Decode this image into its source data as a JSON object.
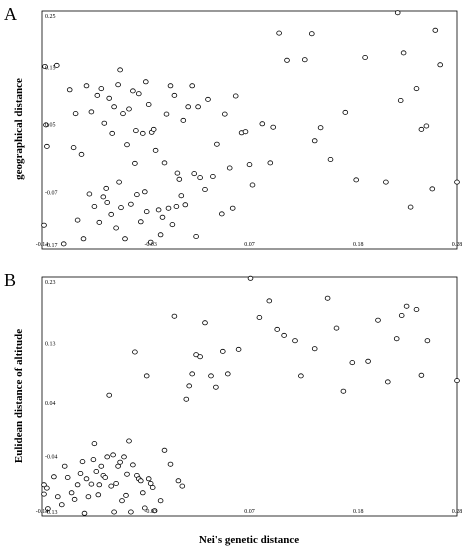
{
  "chart_data": [
    {
      "type": "scatter",
      "panel_letter": "A",
      "xlabel": "",
      "ylabel": "geographical distance",
      "xlim": [
        -0.14,
        0.28
      ],
      "ylim": [
        -0.17,
        0.25
      ],
      "xticks": [
        "-0.14",
        "-0.03",
        "0.07",
        "0.18",
        "0.28"
      ],
      "yticks": [
        "0.25",
        "0.15",
        "0.05",
        "-0.07",
        "-0.17"
      ],
      "grid": false,
      "points": [
        [
          -0.137,
          0.152
        ],
        [
          -0.136,
          0.049
        ],
        [
          -0.135,
          0.011
        ],
        [
          -0.138,
          -0.128
        ],
        [
          -0.125,
          0.154
        ],
        [
          -0.118,
          -0.161
        ],
        [
          -0.112,
          0.111
        ],
        [
          -0.108,
          0.009
        ],
        [
          -0.106,
          0.069
        ],
        [
          -0.104,
          -0.119
        ],
        [
          -0.1,
          -0.003
        ],
        [
          -0.098,
          -0.152
        ],
        [
          -0.095,
          0.118
        ],
        [
          -0.092,
          -0.073
        ],
        [
          -0.09,
          0.072
        ],
        [
          -0.087,
          -0.095
        ],
        [
          -0.084,
          0.101
        ],
        [
          -0.082,
          -0.123
        ],
        [
          -0.08,
          0.113
        ],
        [
          -0.078,
          -0.078
        ],
        [
          -0.077,
          0.052
        ],
        [
          -0.075,
          -0.063
        ],
        [
          -0.074,
          -0.088
        ],
        [
          -0.072,
          0.096
        ],
        [
          -0.07,
          -0.109
        ],
        [
          -0.069,
          0.034
        ],
        [
          -0.067,
          0.081
        ],
        [
          -0.065,
          -0.133
        ],
        [
          -0.063,
          0.12
        ],
        [
          -0.062,
          -0.052
        ],
        [
          -0.061,
          0.146
        ],
        [
          -0.06,
          -0.097
        ],
        [
          -0.058,
          0.069
        ],
        [
          -0.056,
          -0.152
        ],
        [
          -0.054,
          0.014
        ],
        [
          -0.052,
          0.077
        ],
        [
          -0.05,
          -0.091
        ],
        [
          -0.048,
          0.109
        ],
        [
          -0.046,
          -0.019
        ],
        [
          -0.045,
          0.039
        ],
        [
          -0.044,
          -0.074
        ],
        [
          -0.042,
          0.104
        ],
        [
          -0.04,
          -0.122
        ],
        [
          -0.038,
          0.034
        ],
        [
          -0.036,
          -0.069
        ],
        [
          -0.035,
          0.125
        ],
        [
          -0.034,
          -0.104
        ],
        [
          -0.032,
          0.085
        ],
        [
          -0.03,
          -0.158
        ],
        [
          -0.029,
          0.036
        ],
        [
          -0.027,
          0.041
        ],
        [
          -0.025,
          0.004
        ],
        [
          -0.022,
          -0.101
        ],
        [
          -0.02,
          -0.145
        ],
        [
          -0.018,
          -0.114
        ],
        [
          -0.016,
          -0.018
        ],
        [
          -0.014,
          0.068
        ],
        [
          -0.012,
          -0.098
        ],
        [
          -0.01,
          0.118
        ],
        [
          -0.008,
          -0.127
        ],
        [
          -0.006,
          0.101
        ],
        [
          -0.004,
          -0.095
        ],
        [
          -0.003,
          -0.036
        ],
        [
          -0.001,
          -0.047
        ],
        [
          0.001,
          -0.076
        ],
        [
          0.003,
          0.057
        ],
        [
          0.005,
          -0.092
        ],
        [
          0.008,
          0.081
        ],
        [
          0.012,
          0.118
        ],
        [
          0.014,
          -0.037
        ],
        [
          0.016,
          -0.148
        ],
        [
          0.018,
          0.081
        ],
        [
          0.02,
          -0.044
        ],
        [
          0.025,
          -0.065
        ],
        [
          0.028,
          0.094
        ],
        [
          0.033,
          -0.042
        ],
        [
          0.037,
          0.015
        ],
        [
          0.042,
          -0.108
        ],
        [
          0.045,
          0.068
        ],
        [
          0.05,
          -0.027
        ],
        [
          0.053,
          -0.098
        ],
        [
          0.056,
          0.1
        ],
        [
          0.062,
          0.035
        ],
        [
          0.066,
          0.037
        ],
        [
          0.07,
          -0.021
        ],
        [
          0.073,
          -0.057
        ],
        [
          0.083,
          0.051
        ],
        [
          0.091,
          -0.018
        ],
        [
          0.094,
          0.045
        ],
        [
          0.1,
          0.211
        ],
        [
          0.108,
          0.163
        ],
        [
          0.126,
          0.164
        ],
        [
          0.133,
          0.21
        ],
        [
          0.136,
          0.021
        ],
        [
          0.142,
          0.044
        ],
        [
          0.152,
          -0.012
        ],
        [
          0.167,
          0.071
        ],
        [
          0.178,
          -0.048
        ],
        [
          0.187,
          0.168
        ],
        [
          0.208,
          -0.052
        ],
        [
          0.22,
          0.247
        ],
        [
          0.223,
          0.092
        ],
        [
          0.226,
          0.176
        ],
        [
          0.233,
          -0.096
        ],
        [
          0.239,
          0.113
        ],
        [
          0.244,
          0.041
        ],
        [
          0.249,
          0.047
        ],
        [
          0.255,
          -0.064
        ],
        [
          0.258,
          0.216
        ],
        [
          0.263,
          0.155
        ],
        [
          0.28,
          -0.052
        ]
      ]
    },
    {
      "type": "scatter",
      "panel_letter": "B",
      "xlabel": "Nei's genetic distance",
      "ylabel": "Eulidean distance of altitude",
      "xlim": [
        -0.14,
        0.28
      ],
      "ylim": [
        -0.13,
        0.23
      ],
      "xticks": [
        "-0.14",
        "-0.03",
        "0.07",
        "0.18",
        "0.28"
      ],
      "yticks": [
        "0.23",
        "0.13",
        "0.04",
        "-0.04",
        "-0.13"
      ],
      "grid": false,
      "points": [
        [
          -0.138,
          -0.083
        ],
        [
          -0.138,
          -0.097
        ],
        [
          -0.135,
          -0.088
        ],
        [
          -0.134,
          -0.119
        ],
        [
          -0.128,
          -0.071
        ],
        [
          -0.124,
          -0.101
        ],
        [
          -0.12,
          -0.113
        ],
        [
          -0.117,
          -0.055
        ],
        [
          -0.114,
          -0.072
        ],
        [
          -0.11,
          -0.095
        ],
        [
          -0.107,
          -0.105
        ],
        [
          -0.104,
          -0.083
        ],
        [
          -0.101,
          -0.066
        ],
        [
          -0.099,
          -0.048
        ],
        [
          -0.097,
          -0.126
        ],
        [
          -0.095,
          -0.074
        ],
        [
          -0.093,
          -0.101
        ],
        [
          -0.09,
          -0.082
        ],
        [
          -0.088,
          -0.045
        ],
        [
          -0.087,
          -0.021
        ],
        [
          -0.085,
          -0.063
        ],
        [
          -0.083,
          -0.098
        ],
        [
          -0.082,
          -0.083
        ],
        [
          -0.08,
          -0.055
        ],
        [
          -0.078,
          -0.069
        ],
        [
          -0.076,
          -0.072
        ],
        [
          -0.074,
          -0.041
        ],
        [
          -0.072,
          0.052
        ],
        [
          -0.07,
          -0.085
        ],
        [
          -0.068,
          -0.038
        ],
        [
          -0.067,
          -0.124
        ],
        [
          -0.065,
          -0.081
        ],
        [
          -0.063,
          -0.055
        ],
        [
          -0.061,
          -0.049
        ],
        [
          -0.059,
          -0.107
        ],
        [
          -0.057,
          -0.041
        ],
        [
          -0.055,
          -0.099
        ],
        [
          -0.054,
          -0.067
        ],
        [
          -0.052,
          -0.017
        ],
        [
          -0.05,
          -0.124
        ],
        [
          -0.048,
          -0.053
        ],
        [
          -0.046,
          0.117
        ],
        [
          -0.044,
          -0.069
        ],
        [
          -0.042,
          -0.074
        ],
        [
          -0.04,
          -0.077
        ],
        [
          -0.038,
          -0.095
        ],
        [
          -0.036,
          -0.118
        ],
        [
          -0.034,
          0.081
        ],
        [
          -0.032,
          -0.074
        ],
        [
          -0.03,
          -0.081
        ],
        [
          -0.028,
          -0.087
        ],
        [
          -0.026,
          -0.122
        ],
        [
          -0.02,
          -0.107
        ],
        [
          -0.016,
          -0.031
        ],
        [
          -0.01,
          -0.052
        ],
        [
          -0.006,
          0.171
        ],
        [
          -0.002,
          -0.077
        ],
        [
          0.002,
          -0.085
        ],
        [
          0.006,
          0.046
        ],
        [
          0.009,
          0.066
        ],
        [
          0.012,
          0.084
        ],
        [
          0.016,
          0.113
        ],
        [
          0.02,
          0.11
        ],
        [
          0.025,
          0.161
        ],
        [
          0.031,
          0.081
        ],
        [
          0.036,
          0.064
        ],
        [
          0.043,
          0.118
        ],
        [
          0.048,
          0.084
        ],
        [
          0.059,
          0.121
        ],
        [
          0.071,
          0.228
        ],
        [
          0.08,
          0.169
        ],
        [
          0.09,
          0.194
        ],
        [
          0.098,
          0.151
        ],
        [
          0.105,
          0.142
        ],
        [
          0.116,
          0.134
        ],
        [
          0.122,
          0.081
        ],
        [
          0.136,
          0.122
        ],
        [
          0.149,
          0.198
        ],
        [
          0.158,
          0.153
        ],
        [
          0.165,
          0.058
        ],
        [
          0.174,
          0.101
        ],
        [
          0.19,
          0.103
        ],
        [
          0.2,
          0.165
        ],
        [
          0.21,
          0.072
        ],
        [
          0.219,
          0.137
        ],
        [
          0.224,
          0.172
        ],
        [
          0.229,
          0.186
        ],
        [
          0.239,
          0.181
        ],
        [
          0.244,
          0.082
        ],
        [
          0.25,
          0.134
        ],
        [
          0.28,
          0.074
        ]
      ]
    }
  ]
}
